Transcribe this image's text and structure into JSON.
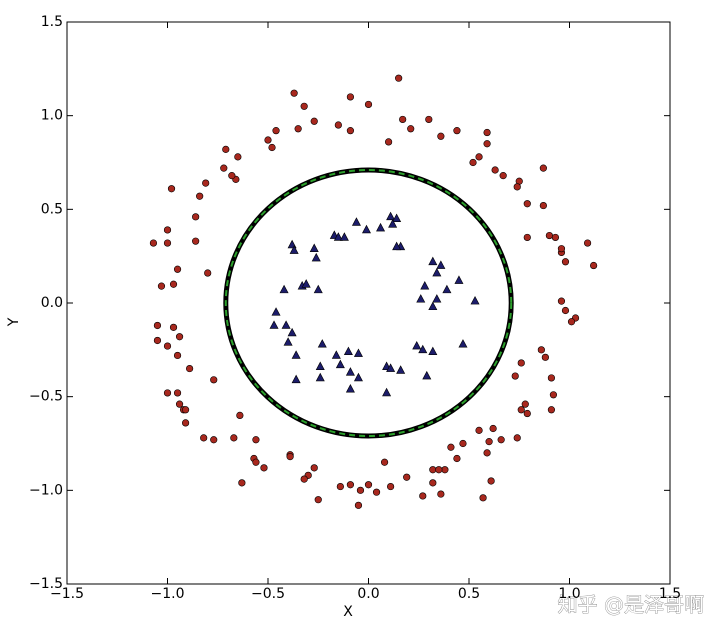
{
  "chart_data": {
    "type": "scatter",
    "x_label": "X",
    "y_label": "Y",
    "xlim": [
      -1.5,
      1.5
    ],
    "ylim": [
      -1.5,
      1.5
    ],
    "xticks": [
      {
        "value": -1.5,
        "label": "−1.5"
      },
      {
        "value": -1.0,
        "label": "−1.0"
      },
      {
        "value": -0.5,
        "label": "−0.5"
      },
      {
        "value": 0,
        "label": "0.0"
      },
      0.5,
      {
        "value": 1.0,
        "label": "1.0"
      },
      1.5
    ],
    "yticks": [
      {
        "value": -1.5,
        "label": "−1.5"
      },
      {
        "value": -1.0,
        "label": "−1.0"
      },
      {
        "value": -0.5,
        "label": "−0.5"
      },
      {
        "value": 0,
        "label": "0.0"
      },
      0.5,
      {
        "value": 1.0,
        "label": "1.0"
      },
      1.5
    ],
    "boundary": {
      "center": [
        0,
        0
      ],
      "radius": 0.71,
      "color": "#2ca02c",
      "edge_color": "#000000"
    },
    "series": [
      {
        "marker": "circle",
        "color": "#a8281e",
        "x": [
          0.15,
          -0.37,
          -0.09,
          0,
          -0.32,
          -0.15,
          -0.27,
          -0.46,
          -0.35,
          -0.09,
          0.17,
          0.3,
          0.21,
          0.36,
          0.44,
          0.59,
          0.59,
          0.1,
          -0.5,
          -0.48,
          -0.71,
          -0.65,
          -0.72,
          -0.66,
          -0.68,
          0.55,
          0.52,
          0.63,
          0.67,
          0.75,
          0.74,
          0.87,
          -0.81,
          -0.84,
          -0.98,
          -0.86,
          -0.86,
          -1.0,
          -1.07,
          -1.0,
          -0.95,
          -0.97,
          -1.03,
          -0.8,
          0.79,
          0.87,
          0.79,
          0.9,
          0.96,
          0.98,
          0.96,
          1.09,
          1.12,
          0.93,
          0.96,
          0.98,
          1.03,
          1.01,
          -1.05,
          -0.97,
          -0.94,
          -1.05,
          -1.0,
          -0.95,
          -0.89,
          0.86,
          0.88,
          0.76,
          0.73,
          0.91,
          -0.77,
          -1.0,
          -0.95,
          -0.94,
          -0.92,
          -0.91,
          0.92,
          0.78,
          0.79,
          0.76,
          0.91,
          -0.64,
          -0.91,
          0.62,
          0.55,
          0.74,
          -0.82,
          -0.77,
          -0.67,
          -0.56,
          0.6,
          0.66,
          0.47,
          0.41,
          0.59,
          -0.39,
          -0.39,
          -0.57,
          -0.56,
          -0.52,
          -0.27,
          0.08,
          0.44,
          0.38,
          0.32,
          0.35,
          0.32,
          -0.3,
          0.61,
          0.19,
          -0.63,
          -0.32,
          0.11,
          -0.14,
          -0.09,
          0,
          -0.04,
          0.04,
          0.27,
          0.36,
          0.57,
          -0.25,
          -0.05
        ],
        "values": [
          1.2,
          1.12,
          1.1,
          1.06,
          1.05,
          0.95,
          0.97,
          0.92,
          0.93,
          0.92,
          0.98,
          0.98,
          0.93,
          0.89,
          0.92,
          0.91,
          0.85,
          0.86,
          0.87,
          0.83,
          0.82,
          0.78,
          0.72,
          0.66,
          0.68,
          0.78,
          0.75,
          0.71,
          0.68,
          0.65,
          0.62,
          0.72,
          0.64,
          0.57,
          0.61,
          0.46,
          0.33,
          0.32,
          0.32,
          0.39,
          0.18,
          0.1,
          0.09,
          0.16,
          0.53,
          0.52,
          0.35,
          0.36,
          0.27,
          0.22,
          0.29,
          0.32,
          0.2,
          0.35,
          0.01,
          -0.04,
          -0.08,
          -0.1,
          -0.12,
          -0.13,
          -0.18,
          -0.2,
          -0.23,
          -0.28,
          -0.35,
          -0.25,
          -0.29,
          -0.32,
          -0.39,
          -0.4,
          -0.41,
          -0.48,
          -0.48,
          -0.54,
          -0.57,
          -0.57,
          -0.49,
          -0.54,
          -0.59,
          -0.57,
          -0.57,
          -0.6,
          -0.64,
          -0.67,
          -0.68,
          -0.72,
          -0.72,
          -0.73,
          -0.72,
          -0.73,
          -0.74,
          -0.73,
          -0.75,
          -0.77,
          -0.8,
          -0.81,
          -0.82,
          -0.83,
          -0.85,
          -0.88,
          -0.88,
          -0.85,
          -0.83,
          -0.89,
          -0.89,
          -0.89,
          -0.96,
          -0.92,
          -0.95,
          -0.93,
          -0.96,
          -0.94,
          -0.98,
          -0.98,
          -0.97,
          -0.97,
          -1.0,
          -1.01,
          -1.03,
          -1.02,
          -1.04,
          -1.05,
          -1.08
        ]
      },
      {
        "marker": "triangle",
        "color": "#1c1c6a",
        "x": [
          0.11,
          0.14,
          0.12,
          -0.06,
          -0.01,
          0.06,
          0.16,
          0.14,
          -0.17,
          -0.15,
          -0.12,
          -0.38,
          -0.37,
          -0.27,
          -0.26,
          -0.33,
          -0.31,
          -0.42,
          -0.25,
          0.32,
          0.36,
          0.34,
          0.45,
          0.39,
          0.28,
          0.26,
          0.34,
          0.32,
          0.53,
          -0.46,
          -0.41,
          -0.47,
          -0.38,
          -0.4,
          -0.36,
          -0.23,
          -0.16,
          -0.1,
          -0.05,
          -0.14,
          -0.24,
          -0.36,
          -0.24,
          -0.09,
          -0.05,
          -0.09,
          0.09,
          0.11,
          0.16,
          0.24,
          0.27,
          0.32,
          0.47,
          0.29,
          0.09
        ],
        "values": [
          0.46,
          0.45,
          0.42,
          0.43,
          0.39,
          0.4,
          0.3,
          0.3,
          0.36,
          0.35,
          0.35,
          0.31,
          0.28,
          0.29,
          0.24,
          0.09,
          0.1,
          0.07,
          0.07,
          0.22,
          0.2,
          0.16,
          0.12,
          0.07,
          0.09,
          0.02,
          0.02,
          -0.02,
          0.01,
          -0.05,
          -0.12,
          -0.12,
          -0.16,
          -0.21,
          -0.28,
          -0.22,
          -0.28,
          -0.26,
          -0.27,
          -0.33,
          -0.34,
          -0.41,
          -0.4,
          -0.37,
          -0.4,
          -0.46,
          -0.34,
          -0.35,
          -0.36,
          -0.23,
          -0.25,
          -0.26,
          -0.22,
          -0.39,
          -0.48
        ]
      }
    ],
    "watermark": "知乎 @是泽哥啊"
  }
}
